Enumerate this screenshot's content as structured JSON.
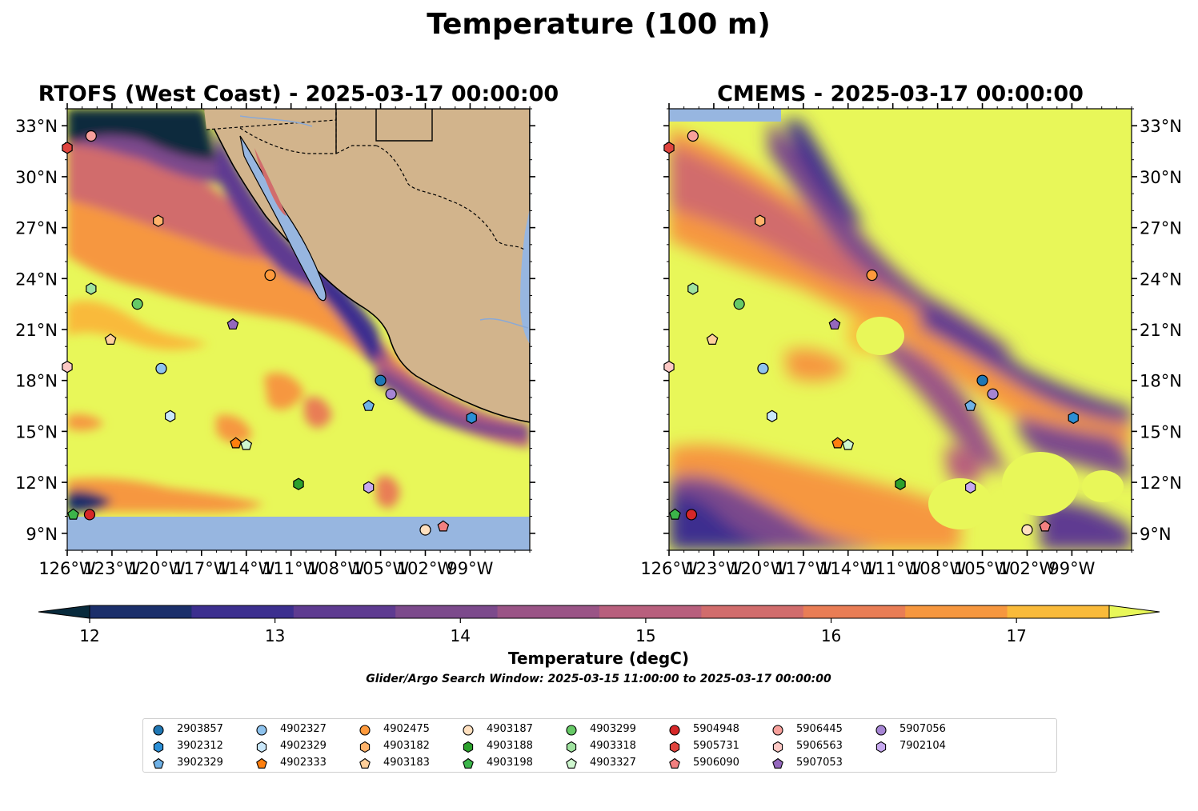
{
  "figure": {
    "title": "Temperature (100 m)",
    "colorbar_label": "Temperature (degC)",
    "search_window": "Glider/Argo Search Window: 2025-03-15 11:00:00 to 2025-03-17 00:00:00"
  },
  "panels": [
    {
      "title": "RTOFS (West Coast) - 2025-03-17 00:00:00",
      "model": "RTOFS"
    },
    {
      "title": "CMEMS - 2025-03-17 00:00:00",
      "model": "CMEMS"
    }
  ],
  "chart_data": {
    "type": "heatmap",
    "title": "Temperature (100 m)",
    "xlim": [
      -126,
      -95
    ],
    "ylim": [
      8,
      34
    ],
    "x_ticks": [
      "126°W",
      "123°W",
      "120°W",
      "117°W",
      "114°W",
      "111°W",
      "108°W",
      "105°W",
      "102°W",
      "99°W"
    ],
    "y_ticks": [
      "33°N",
      "30°N",
      "27°N",
      "24°N",
      "21°N",
      "18°N",
      "15°N",
      "12°N",
      "9°N"
    ],
    "colorbar": {
      "range": [
        12,
        17.5
      ],
      "ticks": [
        "12",
        "13",
        "14",
        "15",
        "16",
        "17"
      ],
      "levels": [
        "#082a3c",
        "#1b2f6b",
        "#3c2f8f",
        "#5e3b91",
        "#7c4a8c",
        "#9a5486",
        "#b85f7d",
        "#d16c6c",
        "#e97d55",
        "#f6973f",
        "#f9ba3a",
        "#e8f759"
      ],
      "extend": "both",
      "label": "Temperature (degC)"
    },
    "floats": [
      {
        "id": "2903857",
        "marker": "circle",
        "color": "#1f77b4",
        "lon": -105.0,
        "lat": 18.0
      },
      {
        "id": "3902312",
        "marker": "hexagon",
        "color": "#2c8fd6",
        "lon": -98.9,
        "lat": 15.8
      },
      {
        "id": "3902329",
        "marker": "pentagon",
        "color": "#6fb1e6",
        "lon": -105.8,
        "lat": 16.5
      },
      {
        "id": "4902327",
        "marker": "circle",
        "color": "#8ec3ee",
        "lon": -119.7,
        "lat": 18.7
      },
      {
        "id": "4902329",
        "marker": "hexagon",
        "color": "#c9e7fa",
        "lon": -119.1,
        "lat": 15.9
      },
      {
        "id": "4902333",
        "marker": "pentagon",
        "color": "#ff7f0e",
        "lon": -114.7,
        "lat": 14.3
      },
      {
        "id": "4902475",
        "marker": "circle",
        "color": "#ff9a3c",
        "lon": -112.4,
        "lat": 24.2
      },
      {
        "id": "4903182",
        "marker": "hexagon",
        "color": "#ffb36b",
        "lon": -119.9,
        "lat": 27.4
      },
      {
        "id": "4903183",
        "marker": "pentagon",
        "color": "#ffcf9a",
        "lon": -123.1,
        "lat": 20.4
      },
      {
        "id": "4903187",
        "marker": "circle",
        "color": "#ffe0bf",
        "lon": -102.0,
        "lat": 9.2
      },
      {
        "id": "4903188",
        "marker": "hexagon",
        "color": "#2ca02c",
        "lon": -110.5,
        "lat": 11.9
      },
      {
        "id": "4903198",
        "marker": "pentagon",
        "color": "#3cb54a",
        "lon": -125.6,
        "lat": 10.1
      },
      {
        "id": "4903299",
        "marker": "circle",
        "color": "#66c966",
        "lon": -121.3,
        "lat": 22.5
      },
      {
        "id": "4903318",
        "marker": "hexagon",
        "color": "#9ee29e",
        "lon": -124.4,
        "lat": 23.4
      },
      {
        "id": "4903327",
        "marker": "pentagon",
        "color": "#cff7cf",
        "lon": -114.0,
        "lat": 14.2
      },
      {
        "id": "5904948",
        "marker": "circle",
        "color": "#d62728",
        "lon": -124.5,
        "lat": 10.1
      },
      {
        "id": "5905731",
        "marker": "hexagon",
        "color": "#e0443e",
        "lon": -126.0,
        "lat": 31.7
      },
      {
        "id": "5906090",
        "marker": "pentagon",
        "color": "#f28080",
        "lon": -100.8,
        "lat": 9.4
      },
      {
        "id": "5906445",
        "marker": "circle",
        "color": "#f7a09b",
        "lon": -124.4,
        "lat": 32.4
      },
      {
        "id": "5906563",
        "marker": "hexagon",
        "color": "#fcc8c4",
        "lon": -126.0,
        "lat": 18.8
      },
      {
        "id": "5907053",
        "marker": "pentagon",
        "color": "#9467bd",
        "lon": -114.9,
        "lat": 21.3
      },
      {
        "id": "5907056",
        "marker": "circle",
        "color": "#a685d4",
        "lon": -104.3,
        "lat": 17.2
      },
      {
        "id": "7902104",
        "marker": "hexagon",
        "color": "#c6a8ef",
        "lon": -105.8,
        "lat": 11.7
      }
    ]
  }
}
